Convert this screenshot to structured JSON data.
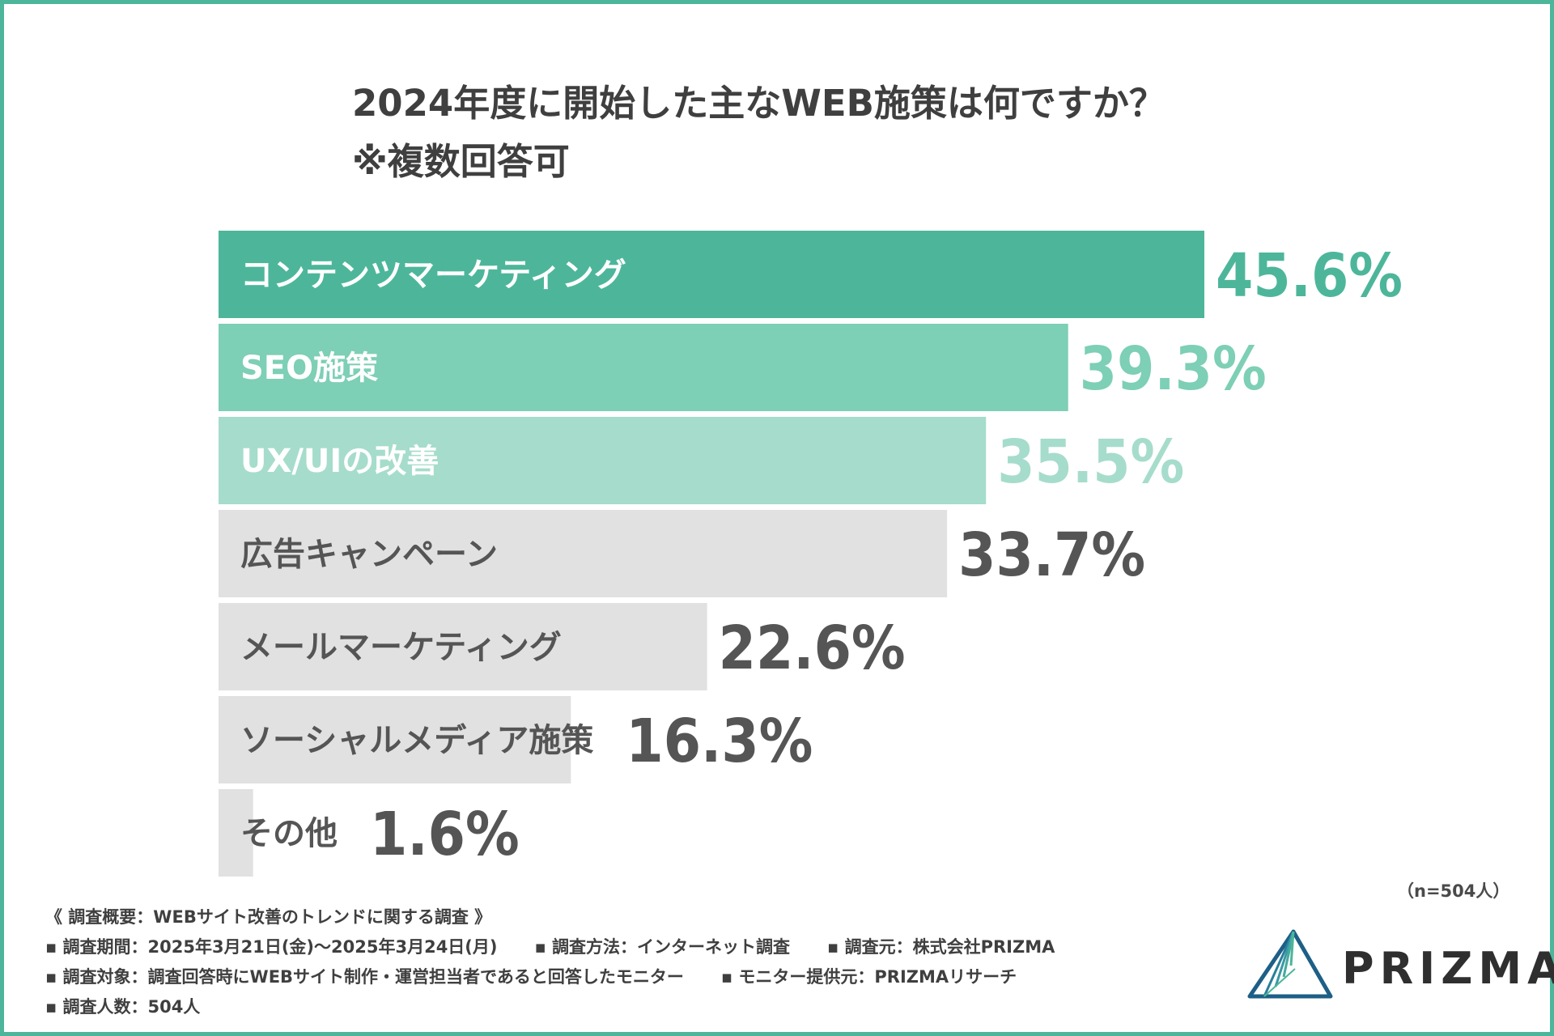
{
  "title": {
    "line1": "2024年度に開始した主なWEB施策は何ですか？",
    "line2": "※複数回答可"
  },
  "chart_data": {
    "type": "bar",
    "orientation": "horizontal",
    "title": "2024年度に開始した主なWEB施策は何ですか？ ※複数回答可",
    "categories": [
      "コンテンツマーケティング",
      "SEO施策",
      "UX/UIの改善",
      "広告キャンペーン",
      "メールマーケティング",
      "ソーシャルメディア施策",
      "その他"
    ],
    "values": [
      45.6,
      39.3,
      35.5,
      33.7,
      22.6,
      16.3,
      1.6
    ],
    "value_labels": [
      "45.6%",
      "39.3%",
      "35.5%",
      "33.7%",
      "22.6%",
      "16.3%",
      "1.6%"
    ],
    "unit": "%",
    "xlim": [
      0,
      45.6
    ],
    "bar_colors": [
      "#4db69a",
      "#7dcfb5",
      "#a6dccb",
      "#e1e1e1",
      "#e1e1e1",
      "#e1e1e1",
      "#e1e1e1"
    ],
    "label_colors": [
      "#ffffff",
      "#ffffff",
      "#ffffff",
      "#555555",
      "#555555",
      "#555555",
      "#555555"
    ],
    "value_colors": [
      "#4db69a",
      "#7dcfb5",
      "#a6dccb",
      "#555555",
      "#555555",
      "#555555",
      "#555555"
    ]
  },
  "sample_note": "（n=504人）",
  "survey": {
    "heading": "《 調査概要：WEBサイト改善のトレンドに関する調査 》",
    "period": "▪ 調査期間：2025年3月21日(金)〜2025年3月24日(月)",
    "method": "▪ 調査方法：インターネット調査",
    "source": "▪ 調査元：株式会社PRIZMA",
    "target": "▪ 調査対象：調査回答時にWEBサイト制作・運営担当者であると回答したモニター",
    "provider": "▪ モニター提供元：PRIZMAリサーチ",
    "count": "▪ 調査人数：504人"
  },
  "logo": {
    "text": "PRIZMA",
    "color_dark": "#1d5f86",
    "color_light": "#4db69a"
  },
  "frame_color": "#4db69a"
}
